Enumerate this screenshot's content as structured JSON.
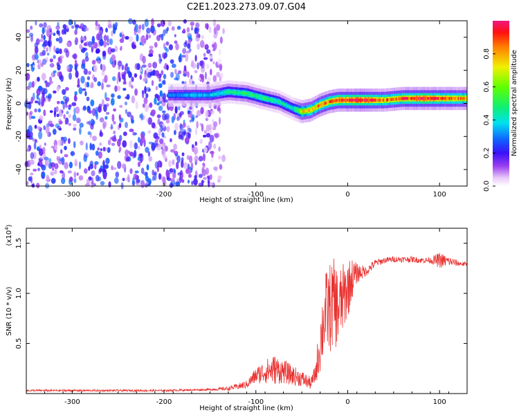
{
  "figure": {
    "title": "C2E1.2023.273.09.07.G04"
  },
  "chart_data": [
    {
      "type": "heatmap",
      "title": "C2E1.2023.273.09.07.G04",
      "xlabel": "Height of straight line (km)",
      "ylabel": "Frequency (Hz)",
      "xlim": [
        -350,
        130
      ],
      "ylim": [
        -50,
        50
      ],
      "xticks": [
        -300,
        -200,
        -100,
        0,
        100
      ],
      "yticks": [
        -40,
        -20,
        0,
        20,
        40
      ],
      "colorbar": {
        "label": "Normalized spectral amplitude",
        "range": [
          0.0,
          1.0
        ],
        "ticks": [
          0.0,
          0.2,
          0.4,
          0.6,
          0.8
        ],
        "tick_labels": [
          "0.0",
          "0.2",
          "0.4",
          "0.6",
          "0.8"
        ],
        "colormap": "rainbow (white → violet → blue → cyan → green → yellow → red → magenta)"
      },
      "ridge": {
        "description": "dominant spectral line frequency vs height",
        "x": [
          -195,
          -170,
          -150,
          -130,
          -110,
          -90,
          -75,
          -60,
          -50,
          -40,
          -30,
          -20,
          -10,
          0,
          20,
          40,
          60,
          80,
          100,
          130
        ],
        "y": [
          5,
          5,
          5,
          7,
          6,
          3,
          1,
          -3,
          -5,
          -4,
          -1,
          1,
          2,
          2,
          2,
          2,
          3,
          3,
          3,
          3
        ],
        "peak_amplitude": [
          0.3,
          0.35,
          0.35,
          0.45,
          0.5,
          0.5,
          0.45,
          0.4,
          0.75,
          0.8,
          0.85,
          0.9,
          0.95,
          1.0,
          1.0,
          0.85,
          0.9,
          1.0,
          0.9,
          0.85
        ]
      },
      "noise_region": {
        "description": "broadband low-amplitude noise across all frequencies",
        "x_range": [
          -350,
          -135
        ],
        "amplitude_range": [
          0.05,
          0.3
        ]
      }
    },
    {
      "type": "line",
      "xlabel": "Height of straight line (km)",
      "ylabel": "SNR (10 * v/v)",
      "y_scale_label": "(x10",
      "y_scale_exponent": "4",
      "xlim": [
        -350,
        130
      ],
      "ylim": [
        0,
        1.65
      ],
      "xticks": [
        -300,
        -200,
        -100,
        0,
        100
      ],
      "yticks": [
        0.5,
        1.0,
        1.5
      ],
      "ytick_labels": [
        "0.5",
        "1.0",
        "1.5"
      ],
      "series": [
        {
          "color": "#e8312f",
          "x": [
            -350,
            -300,
            -250,
            -200,
            -150,
            -130,
            -110,
            -100,
            -90,
            -80,
            -70,
            -60,
            -50,
            -40,
            -35,
            -30,
            -25,
            -20,
            -15,
            -10,
            -5,
            0,
            5,
            10,
            20,
            30,
            40,
            50,
            60,
            70,
            80,
            90,
            100,
            110,
            120,
            130
          ],
          "y": [
            0.03,
            0.03,
            0.03,
            0.03,
            0.04,
            0.05,
            0.09,
            0.18,
            0.22,
            0.24,
            0.22,
            0.18,
            0.15,
            0.1,
            0.2,
            0.5,
            0.8,
            0.85,
            0.9,
            0.85,
            0.95,
            1.05,
            1.15,
            1.2,
            1.22,
            1.3,
            1.33,
            1.34,
            1.34,
            1.34,
            1.33,
            1.33,
            1.33,
            1.32,
            1.3,
            1.29
          ],
          "noise_amplitude": [
            0.01,
            0.01,
            0.01,
            0.01,
            0.01,
            0.02,
            0.04,
            0.08,
            0.12,
            0.15,
            0.12,
            0.1,
            0.08,
            0.06,
            0.1,
            0.3,
            0.4,
            0.45,
            0.45,
            0.4,
            0.35,
            0.3,
            0.2,
            0.1,
            0.05,
            0.04,
            0.03,
            0.03,
            0.03,
            0.03,
            0.03,
            0.03,
            0.08,
            0.05,
            0.03,
            0.02
          ]
        }
      ]
    }
  ]
}
